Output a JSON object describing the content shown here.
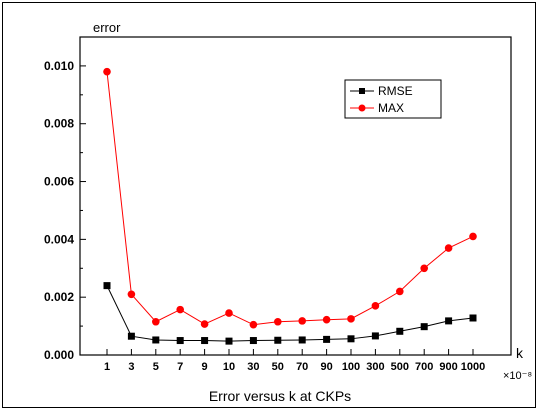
{
  "chart_data": {
    "type": "line",
    "title": "Error versus k at CKPs",
    "ylabel": "error",
    "xlabel": "k",
    "x_unit": "×10⁻⁸",
    "categories": [
      "1",
      "3",
      "5",
      "7",
      "9",
      "10",
      "30",
      "50",
      "70",
      "90",
      "100",
      "300",
      "500",
      "700",
      "900",
      "1000"
    ],
    "series": [
      {
        "name": "RMSE",
        "color": "#000000",
        "marker": "square",
        "values": [
          0.0024,
          0.00065,
          0.00052,
          0.0005,
          0.0005,
          0.00048,
          0.0005,
          0.00051,
          0.00052,
          0.00054,
          0.00056,
          0.00066,
          0.00082,
          0.00098,
          0.00118,
          0.00128
        ]
      },
      {
        "name": "MAX",
        "color": "#ff0000",
        "marker": "circle",
        "values": [
          0.0098,
          0.0021,
          0.00115,
          0.00157,
          0.00107,
          0.00145,
          0.00105,
          0.00115,
          0.00118,
          0.00122,
          0.00125,
          0.0017,
          0.0022,
          0.003,
          0.0037,
          0.0041
        ]
      }
    ],
    "ylim": [
      0,
      0.011
    ],
    "yticks": [
      "0.000",
      "0.002",
      "0.004",
      "0.006",
      "0.008",
      "0.010"
    ],
    "ytick_values": [
      0,
      0.002,
      0.004,
      0.006,
      0.008,
      0.01
    ],
    "grid": false,
    "legend_position": "top-right"
  }
}
